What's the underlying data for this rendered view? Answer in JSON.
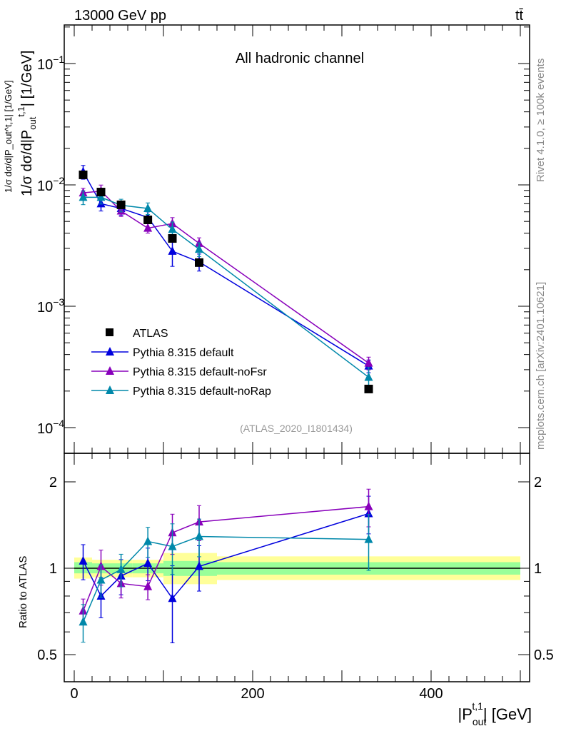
{
  "header": {
    "left": "13000 GeV pp",
    "right": "tt̄"
  },
  "side_text": {
    "rivet": "Rivet 4.1.0, ≥ 100k events",
    "mcplots": "mcplots.cern.ch [arXiv:2401.10621]"
  },
  "chart_data": [
    {
      "type": "line",
      "title": "All hadronic channel",
      "analysis_id": "(ATLAS_2020_I1801434)",
      "ylabel": "1/σ dσ/d|P_out^t,1| [1/GeV]",
      "ylabel_main": "1/σ dσ/d|P",
      "ylabel_sub": "out",
      "ylabel_sup": "t,1",
      "ylabel_unit": "| [1/GeV]",
      "yscale": "log",
      "ylim": [
        6.23e-05,
        0.161
      ],
      "xlim": [
        -11,
        510
      ],
      "yticks": [
        {
          "v": 0.1,
          "l": "10",
          "e": "−1"
        },
        {
          "v": 0.01,
          "l": "10",
          "e": "−2"
        },
        {
          "v": 0.001,
          "l": "10",
          "e": "−3"
        },
        {
          "v": 0.0001,
          "l": "10",
          "e": "−4"
        }
      ],
      "x": [
        10,
        30,
        52.5,
        82.5,
        110,
        140,
        330
      ],
      "bin_edges": [
        0,
        20,
        40,
        65,
        100,
        120,
        160,
        500
      ],
      "legend_position": "bottom-left",
      "data": {
        "name": "ATLAS",
        "values": [
          0.0121,
          0.00873,
          0.00685,
          0.00515,
          0.00362,
          0.00229,
          0.000208
        ]
      },
      "series": [
        {
          "name": "Pythia 8.315 default",
          "color": "#0000dd",
          "values": [
            0.0128,
            0.007,
            0.0064,
            0.0054,
            0.00284,
            0.00232,
            0.000322
          ],
          "rel_err": [
            0.13,
            0.13,
            0.12,
            0.11,
            0.25,
            0.16,
            0.12
          ]
        },
        {
          "name": "Pythia 8.315 default-noFsr",
          "color": "#8800bb",
          "values": [
            0.0086,
            0.0089,
            0.0061,
            0.0044,
            0.0048,
            0.0033,
            0.00034
          ],
          "rel_err": [
            0.09,
            0.12,
            0.1,
            0.09,
            0.12,
            0.11,
            0.12
          ]
        },
        {
          "name": "Pythia 8.315 default-noRap",
          "color": "#0088aa",
          "values": [
            0.0079,
            0.0079,
            0.0068,
            0.0064,
            0.0043,
            0.00295,
            0.00026
          ],
          "rel_err": [
            0.13,
            0.12,
            0.12,
            0.11,
            0.15,
            0.13,
            0.2
          ]
        }
      ]
    },
    {
      "type": "line",
      "ylabel": "Ratio to ATLAS",
      "xlabel": "|P_out^t,1| [GeV]",
      "xlabel_main": "|P",
      "xlabel_sub": "out",
      "xlabel_sup": "t,1",
      "xlabel_unit": "| [GeV]",
      "yscale": "log",
      "ylim": [
        0.4,
        2.51
      ],
      "yticks": [
        {
          "v": 0.5,
          "l": "0.5"
        },
        {
          "v": 1,
          "l": "1"
        },
        {
          "v": 2,
          "l": "2"
        }
      ],
      "xticks": [
        {
          "v": 0,
          "l": "0"
        },
        {
          "v": 200,
          "l": "200"
        },
        {
          "v": 400,
          "l": "400"
        }
      ],
      "band_yellow": [
        [
          0.92,
          1.09
        ],
        [
          0.93,
          1.07
        ],
        [
          0.93,
          1.07
        ],
        [
          0.93,
          1.07
        ],
        [
          0.88,
          1.13
        ],
        [
          0.88,
          1.13
        ],
        [
          0.91,
          1.1
        ]
      ],
      "band_green": [
        [
          0.96,
          1.05
        ],
        [
          0.96,
          1.04
        ],
        [
          0.96,
          1.04
        ],
        [
          0.96,
          1.04
        ],
        [
          0.94,
          1.06
        ],
        [
          0.94,
          1.06
        ],
        [
          0.95,
          1.05
        ]
      ],
      "series": [
        {
          "name": "Pythia 8.315 default",
          "color": "#0000dd",
          "values": [
            1.06,
            0.8,
            0.94,
            1.04,
            0.785,
            1.015,
            1.55
          ],
          "rel_err": [
            0.14,
            0.16,
            0.14,
            0.13,
            0.3,
            0.18,
            0.15
          ]
        },
        {
          "name": "Pythia 8.315 default-noFsr",
          "color": "#8800bb",
          "values": [
            0.71,
            1.015,
            0.885,
            0.863,
            1.33,
            1.45,
            1.64
          ],
          "rel_err": [
            0.1,
            0.14,
            0.11,
            0.1,
            0.16,
            0.14,
            0.15
          ]
        },
        {
          "name": "Pythia 8.315 default-noRap",
          "color": "#0088aa",
          "values": [
            0.65,
            0.91,
            0.99,
            1.24,
            1.19,
            1.29,
            1.26
          ],
          "rel_err": [
            0.15,
            0.13,
            0.13,
            0.12,
            0.2,
            0.15,
            0.22
          ]
        }
      ]
    }
  ]
}
